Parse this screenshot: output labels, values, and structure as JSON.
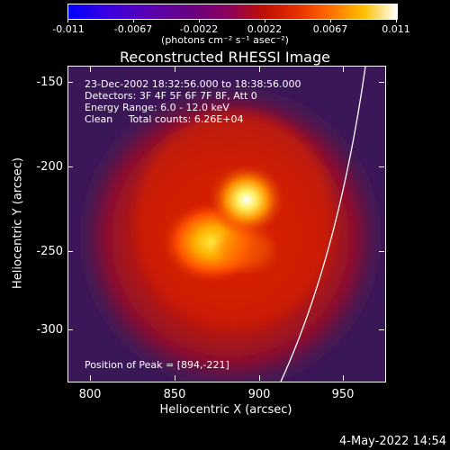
{
  "colorbar": {
    "labels": [
      "-0.011",
      "-0.0067",
      "-0.0022",
      "0.0022",
      "0.0067",
      "0.011"
    ],
    "units": "(photons cm⁻² s⁻¹ asec⁻²)"
  },
  "title": "Reconstructed RHESSI Image",
  "info": {
    "line1": "23-Dec-2002 18:32:56.000 to 18:38:56.000",
    "line2": "Detectors: 3F 4F 5F 6F 7F 8F, Att 0",
    "line3": "Energy Range: 6.0 - 12.0 keV",
    "line4": "Clean     Total counts: 6.26E+04"
  },
  "peak": "Position of Peak = [894,-221]",
  "axes": {
    "xlabel": "Heliocentric X (arcsec)",
    "ylabel": "Heliocentric Y (arcsec)",
    "xticks": [
      "800",
      "850",
      "900",
      "950"
    ],
    "yticks": [
      "-150",
      "-200",
      "-250",
      "-300"
    ]
  },
  "timestamp": "4-May-2022 14:54"
}
